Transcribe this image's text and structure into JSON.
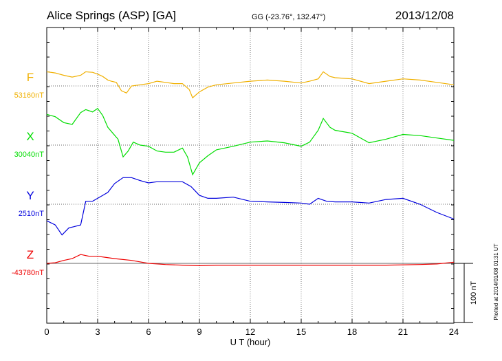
{
  "chart_data": {
    "type": "line",
    "title": "Alice Springs (ASP)  [GA]",
    "coordinates": "GG (-23.76°, 132.47°)",
    "date": "2013/12/08",
    "xlabel": "U T (hour)",
    "xlim": [
      0,
      24
    ],
    "x_ticks": [
      "0",
      "3",
      "6",
      "9",
      "12",
      "15",
      "18",
      "21",
      "24"
    ],
    "scale_bar_label": "100 nT",
    "scale_bar_nT": 100,
    "plotted_note": "Plotted at 2014/01/08 01:31  UT",
    "series": [
      {
        "name": "F",
        "baseline_label": "53160nT",
        "baseline_nT": 53160,
        "color": "#f0b000",
        "x": [
          0,
          0.5,
          1.0,
          1.5,
          2.0,
          2.3,
          2.7,
          3.0,
          3.3,
          3.6,
          3.8,
          4.1,
          4.4,
          4.7,
          5.0,
          5.5,
          6.0,
          6.5,
          7.0,
          7.5,
          8.0,
          8.4,
          8.6,
          9.0,
          9.5,
          10,
          11,
          12,
          13,
          14,
          15,
          15.5,
          16.0,
          16.3,
          16.7,
          17,
          18,
          19,
          20,
          21,
          22,
          23,
          24
        ],
        "y": [
          24,
          22,
          18,
          15,
          18,
          24,
          23,
          20,
          16,
          10,
          8,
          6,
          -8,
          -12,
          0,
          2,
          4,
          8,
          6,
          4,
          4,
          -6,
          -20,
          -10,
          -2,
          2,
          5,
          8,
          10,
          8,
          5,
          8,
          12,
          24,
          16,
          14,
          12,
          4,
          8,
          12,
          10,
          6,
          2
        ]
      },
      {
        "name": "X",
        "baseline_label": "30040nT",
        "baseline_nT": 30040,
        "color": "#00dd00",
        "x": [
          0,
          0.5,
          1.0,
          1.5,
          2.0,
          2.3,
          2.7,
          3.0,
          3.3,
          3.6,
          3.9,
          4.2,
          4.5,
          4.8,
          5.1,
          5.5,
          6.0,
          6.5,
          7.0,
          7.5,
          8.0,
          8.3,
          8.6,
          9.0,
          9.5,
          10,
          11,
          12,
          13,
          14,
          15,
          15.5,
          16.0,
          16.3,
          16.7,
          17,
          18,
          19,
          20,
          21,
          22,
          23,
          24
        ],
        "y": [
          52,
          48,
          38,
          35,
          55,
          60,
          56,
          62,
          50,
          30,
          20,
          10,
          -20,
          -10,
          5,
          0,
          -2,
          -10,
          -12,
          -12,
          -5,
          -20,
          -50,
          -30,
          -18,
          -8,
          -2,
          5,
          7,
          4,
          -2,
          5,
          25,
          45,
          30,
          25,
          20,
          4,
          10,
          18,
          16,
          12,
          8
        ]
      },
      {
        "name": "Y",
        "baseline_label": "2510nT",
        "baseline_nT": 2510,
        "color": "#0000dd",
        "x": [
          0,
          0.5,
          0.9,
          1.3,
          1.6,
          2.0,
          2.3,
          2.7,
          3.0,
          3.3,
          3.6,
          4.0,
          4.5,
          5.0,
          5.5,
          6.0,
          6.5,
          7.0,
          7.5,
          8.0,
          8.5,
          9.0,
          9.5,
          10,
          11,
          12,
          13,
          14,
          15,
          15.5,
          16.0,
          16.5,
          17,
          18,
          19,
          20,
          21,
          22,
          23,
          24
        ],
        "y": [
          -28,
          -35,
          -52,
          -40,
          -38,
          -35,
          5,
          5,
          10,
          15,
          20,
          35,
          45,
          45,
          40,
          36,
          38,
          38,
          38,
          38,
          30,
          15,
          10,
          10,
          12,
          5,
          4,
          3,
          2,
          0,
          10,
          5,
          4,
          4,
          2,
          8,
          10,
          0,
          -14,
          -25
        ]
      },
      {
        "name": "Z",
        "baseline_label": "-43780nT",
        "baseline_nT": -43780,
        "color": "#ee0000",
        "x": [
          0,
          0.5,
          1.0,
          1.5,
          2.0,
          2.5,
          3.0,
          3.5,
          4.0,
          5.0,
          6.0,
          7.0,
          8.0,
          9.0,
          10,
          12,
          14,
          16,
          18,
          20,
          22,
          23,
          24
        ],
        "y": [
          0,
          1,
          5,
          8,
          15,
          12,
          12,
          10,
          8,
          5,
          0,
          -2,
          -3,
          -4,
          -3,
          -3,
          -3,
          -3,
          -3,
          -3,
          -2,
          -1,
          2
        ]
      }
    ]
  }
}
